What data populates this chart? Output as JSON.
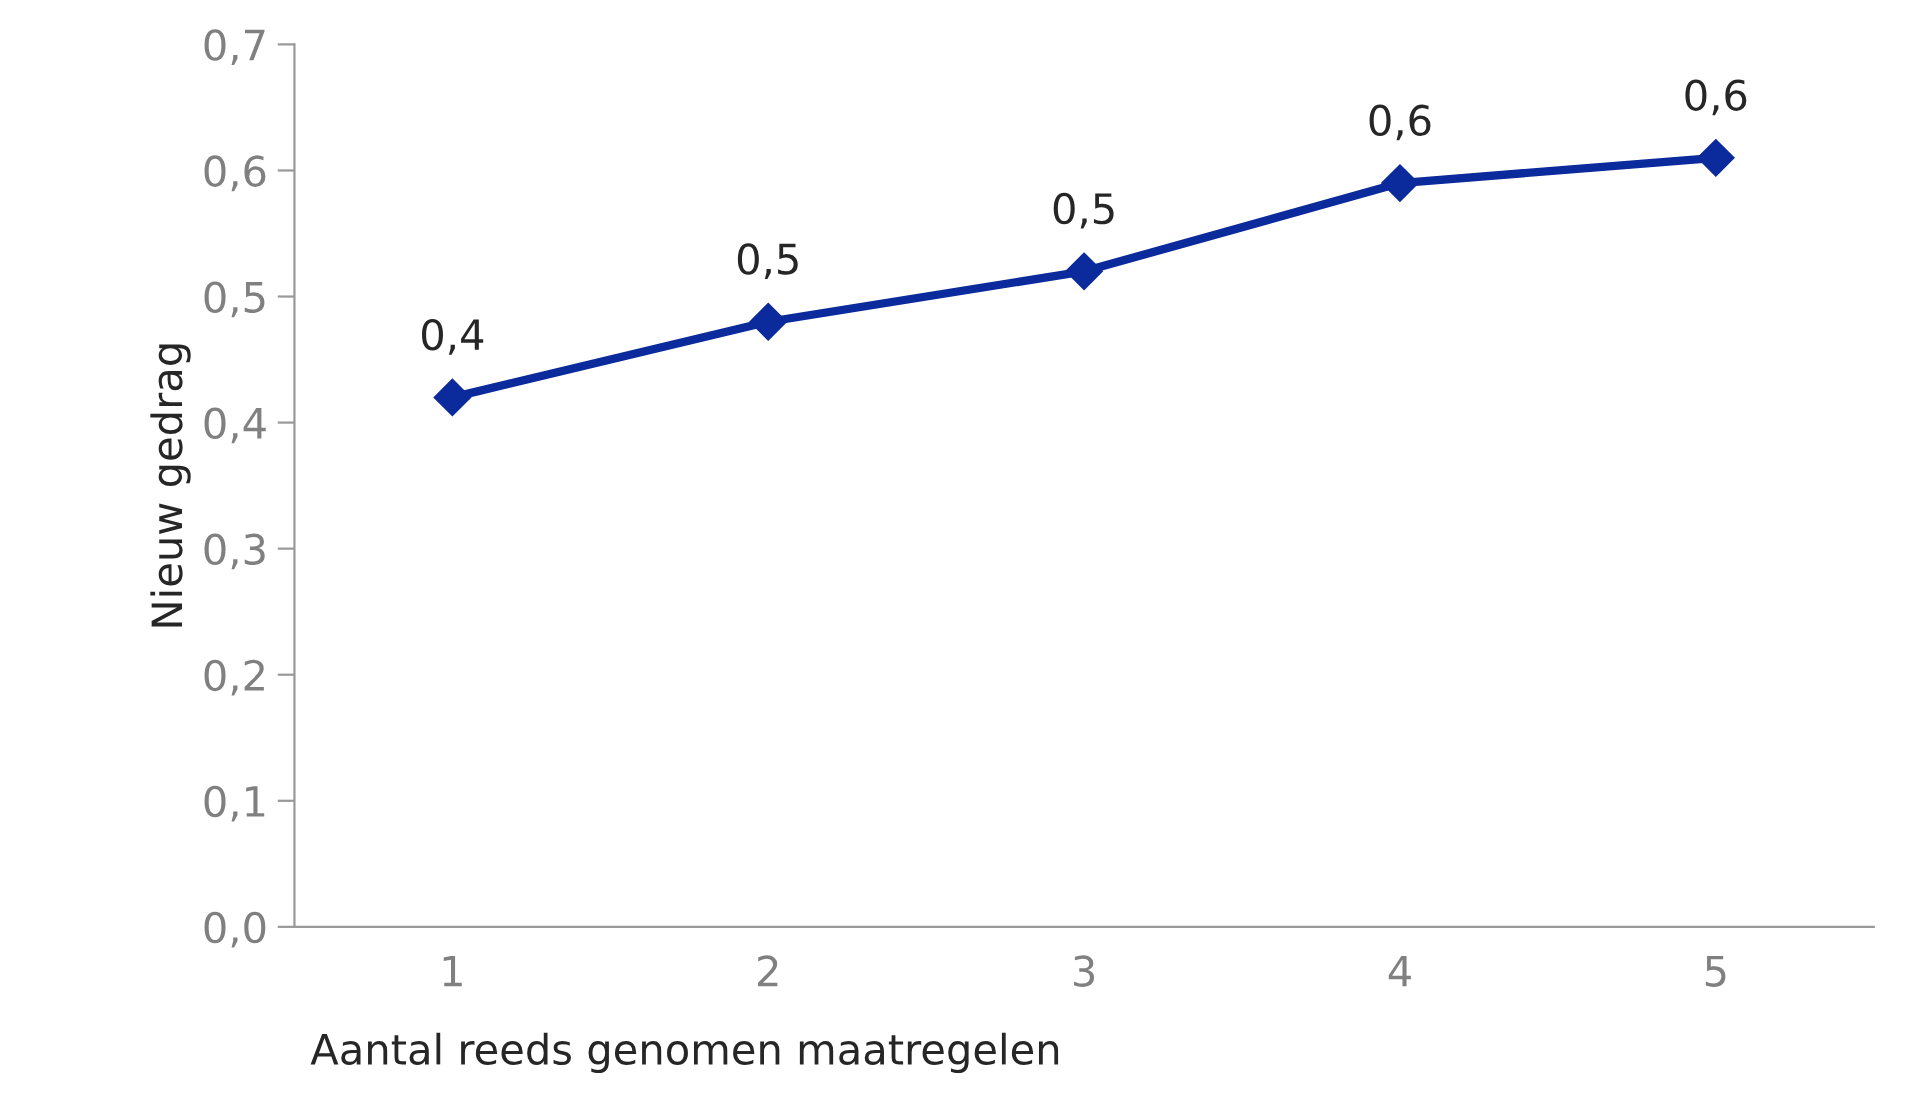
{
  "chart_data": {
    "type": "line",
    "xlabel": "Aantal reeds genomen maatregelen",
    "ylabel": "Nieuw gedrag",
    "categories": [
      "1",
      "2",
      "3",
      "4",
      "5"
    ],
    "series": [
      {
        "color": "#0b2a9c",
        "values": [
          0.42,
          0.48,
          0.52,
          0.59,
          0.61
        ],
        "value_labels": [
          "0,4",
          "0,5",
          "0,5",
          "0,6",
          "0,6"
        ]
      }
    ],
    "ylim": [
      0,
      0.7
    ],
    "yticks": [
      {
        "value": 0,
        "label": "0,0"
      },
      {
        "value": 0.1,
        "label": "0,1"
      },
      {
        "value": 0.2,
        "label": "0,2"
      },
      {
        "value": 0.3,
        "label": "0,3"
      },
      {
        "value": 0.4,
        "label": "0,4"
      },
      {
        "value": 0.5,
        "label": "0,5"
      },
      {
        "value": 0.6,
        "label": "0,6"
      },
      {
        "value": 0.7,
        "label": "0,7"
      }
    ],
    "marker": "diamond",
    "line_style": "solid",
    "grid": false,
    "legend": false
  }
}
